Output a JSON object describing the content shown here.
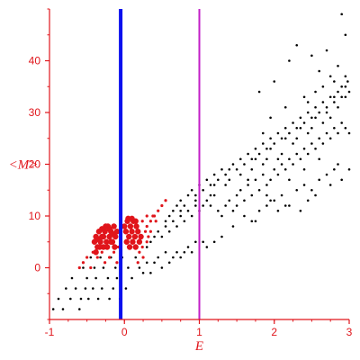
{
  "chart_data": {
    "type": "scatter",
    "xlabel": "E",
    "ylabel": "<M>",
    "xlim": [
      -1,
      3
    ],
    "ylim": [
      -10,
      50
    ],
    "x_ticks": [
      -1,
      0,
      1,
      2,
      3
    ],
    "y_ticks": [
      0,
      10,
      20,
      30,
      40
    ],
    "x_tick_labels": [
      "-1",
      "0",
      "1",
      "2",
      "3"
    ],
    "y_tick_labels": [
      "0",
      "10",
      "20",
      "30",
      "40"
    ],
    "grid": false,
    "legend": "none",
    "vertical_lines": [
      {
        "x": -0.05,
        "color": "#0a10ee"
      },
      {
        "x": 1.0,
        "color": "#c21ec7"
      }
    ],
    "series": [
      {
        "color": "#000000",
        "marker_size": 1.3,
        "points": [
          [
            -0.95,
            -8
          ],
          [
            -0.88,
            -6
          ],
          [
            -0.82,
            -8
          ],
          [
            -0.78,
            -4
          ],
          [
            -0.72,
            -6
          ],
          [
            -0.7,
            -2
          ],
          [
            -0.65,
            -4
          ],
          [
            -0.6,
            -8
          ],
          [
            -0.58,
            -6
          ],
          [
            -0.55,
            0
          ],
          [
            -0.52,
            -4
          ],
          [
            -0.5,
            -2
          ],
          [
            -0.48,
            -6
          ],
          [
            -0.45,
            2
          ],
          [
            -0.42,
            -4
          ],
          [
            -0.4,
            0
          ],
          [
            -0.38,
            -2
          ],
          [
            -0.35,
            -6
          ],
          [
            -0.32,
            2
          ],
          [
            -0.3,
            -4
          ],
          [
            -0.28,
            0
          ],
          [
            -0.25,
            4
          ],
          [
            -0.22,
            -2
          ],
          [
            -0.2,
            -6
          ],
          [
            -0.18,
            2
          ],
          [
            -0.15,
            -4
          ],
          [
            -0.12,
            0
          ],
          [
            -0.1,
            -2
          ],
          [
            -0.08,
            4
          ],
          [
            -0.06,
            -6
          ],
          [
            -0.03,
            2
          ],
          [
            0.02,
            -4
          ],
          [
            0.05,
            0
          ],
          [
            0.1,
            -2
          ],
          [
            0.15,
            2
          ],
          [
            0.2,
            0
          ],
          [
            0.25,
            -1
          ],
          [
            0.3,
            1
          ],
          [
            0.35,
            -1
          ],
          [
            0.4,
            1
          ],
          [
            0.45,
            2
          ],
          [
            0.5,
            0
          ],
          [
            0.55,
            3
          ],
          [
            0.6,
            1
          ],
          [
            0.65,
            2
          ],
          [
            0.7,
            3
          ],
          [
            0.75,
            2
          ],
          [
            0.8,
            3
          ],
          [
            0.85,
            4
          ],
          [
            0.9,
            3
          ],
          [
            0.95,
            5
          ],
          [
            1.05,
            5
          ],
          [
            1.1,
            4
          ],
          [
            1.2,
            5
          ],
          [
            1.3,
            6
          ],
          [
            1.45,
            8
          ],
          [
            1.6,
            10
          ],
          [
            1.7,
            9
          ],
          [
            1.8,
            11
          ],
          [
            1.9,
            12
          ],
          [
            2.0,
            13
          ],
          [
            2.1,
            14
          ],
          [
            2.2,
            12
          ],
          [
            2.3,
            15
          ],
          [
            2.4,
            16
          ],
          [
            2.5,
            15
          ],
          [
            2.6,
            17
          ],
          [
            2.7,
            18
          ],
          [
            2.8,
            19
          ],
          [
            2.9,
            17
          ],
          [
            3.0,
            19
          ],
          [
            2.45,
            13
          ],
          [
            2.35,
            11
          ],
          [
            2.15,
            12
          ],
          [
            1.95,
            13
          ],
          [
            2.85,
            20
          ],
          [
            2.75,
            16
          ],
          [
            2.55,
            14
          ],
          [
            2.05,
            11
          ],
          [
            1.75,
            9
          ],
          [
            0.3,
            4
          ],
          [
            0.35,
            5
          ],
          [
            0.4,
            6
          ],
          [
            0.45,
            7
          ],
          [
            0.5,
            6
          ],
          [
            0.55,
            8
          ],
          [
            0.6,
            7
          ],
          [
            0.65,
            9
          ],
          [
            0.7,
            8
          ],
          [
            0.75,
            10
          ],
          [
            0.8,
            9
          ],
          [
            0.85,
            11
          ],
          [
            0.9,
            10
          ],
          [
            0.95,
            12
          ],
          [
            1.0,
            11
          ],
          [
            1.05,
            12
          ],
          [
            1.1,
            13
          ],
          [
            1.15,
            12
          ],
          [
            1.2,
            14
          ],
          [
            1.25,
            11
          ],
          [
            1.3,
            10
          ],
          [
            1.35,
            12
          ],
          [
            1.4,
            13
          ],
          [
            1.45,
            11
          ],
          [
            1.5,
            14
          ],
          [
            1.55,
            15
          ],
          [
            1.6,
            13
          ],
          [
            1.65,
            16
          ],
          [
            1.7,
            14
          ],
          [
            1.75,
            17
          ],
          [
            1.8,
            15
          ],
          [
            1.85,
            18
          ],
          [
            1.9,
            16
          ],
          [
            1.95,
            17
          ],
          [
            2.0,
            19
          ],
          [
            2.05,
            18
          ],
          [
            2.1,
            20
          ],
          [
            2.15,
            19
          ],
          [
            2.2,
            21
          ],
          [
            2.25,
            20
          ],
          [
            2.3,
            22
          ],
          [
            2.35,
            21
          ],
          [
            2.4,
            23
          ],
          [
            2.45,
            22
          ],
          [
            2.5,
            24
          ],
          [
            2.55,
            23
          ],
          [
            2.6,
            25
          ],
          [
            2.65,
            24
          ],
          [
            2.7,
            26
          ],
          [
            2.75,
            25
          ],
          [
            2.8,
            27
          ],
          [
            2.85,
            26
          ],
          [
            2.9,
            28
          ],
          [
            2.95,
            27
          ],
          [
            3.0,
            26
          ],
          [
            2.6,
            21
          ],
          [
            2.4,
            19
          ],
          [
            2.2,
            17
          ],
          [
            1.9,
            14
          ],
          [
            1.5,
            12
          ],
          [
            0.6,
            10
          ],
          [
            0.65,
            11
          ],
          [
            0.7,
            12
          ],
          [
            0.75,
            13
          ],
          [
            0.8,
            12
          ],
          [
            0.85,
            14
          ],
          [
            0.9,
            15
          ],
          [
            0.95,
            14
          ],
          [
            1.0,
            16
          ],
          [
            1.05,
            15
          ],
          [
            1.1,
            17
          ],
          [
            1.15,
            16
          ],
          [
            1.2,
            18
          ],
          [
            1.25,
            17
          ],
          [
            1.3,
            19
          ],
          [
            1.35,
            18
          ],
          [
            1.4,
            19
          ],
          [
            1.45,
            20
          ],
          [
            1.5,
            19
          ],
          [
            1.55,
            21
          ],
          [
            1.6,
            20
          ],
          [
            1.65,
            22
          ],
          [
            1.7,
            21
          ],
          [
            1.75,
            23
          ],
          [
            1.8,
            22
          ],
          [
            1.85,
            24
          ],
          [
            1.9,
            23
          ],
          [
            1.95,
            25
          ],
          [
            2.0,
            24
          ],
          [
            2.05,
            26
          ],
          [
            2.1,
            25
          ],
          [
            2.15,
            27
          ],
          [
            2.2,
            26
          ],
          [
            2.25,
            28
          ],
          [
            2.3,
            27
          ],
          [
            2.35,
            29
          ],
          [
            2.4,
            28
          ],
          [
            2.45,
            30
          ],
          [
            2.5,
            29
          ],
          [
            2.55,
            31
          ],
          [
            2.6,
            30
          ],
          [
            2.65,
            32
          ],
          [
            2.7,
            31
          ],
          [
            2.75,
            33
          ],
          [
            2.8,
            32
          ],
          [
            2.85,
            34
          ],
          [
            2.9,
            33
          ],
          [
            2.95,
            35
          ],
          [
            3.0,
            34
          ],
          [
            2.98,
            36
          ],
          [
            2.9,
            35
          ],
          [
            2.8,
            33
          ],
          [
            2.7,
            30
          ],
          [
            2.5,
            27
          ],
          [
            2.3,
            25
          ],
          [
            2.1,
            22
          ],
          [
            1.9,
            21
          ],
          [
            1.7,
            19
          ],
          [
            1.4,
            17
          ],
          [
            1.2,
            16
          ],
          [
            2.25,
            24
          ],
          [
            2.45,
            26
          ],
          [
            2.65,
            28
          ],
          [
            2.85,
            31
          ],
          [
            2.95,
            33
          ],
          [
            2.55,
            29
          ],
          [
            2.35,
            27
          ],
          [
            2.15,
            25
          ],
          [
            1.95,
            23
          ],
          [
            1.75,
            21
          ],
          [
            1.55,
            18
          ],
          [
            1.35,
            16
          ],
          [
            1.15,
            14
          ],
          [
            0.95,
            13
          ],
          [
            0.75,
            11
          ],
          [
            0.55,
            9
          ],
          [
            2.05,
            21
          ],
          [
            2.75,
            29
          ],
          [
            1.85,
            20
          ],
          [
            1.65,
            17
          ],
          [
            2.3,
            43
          ],
          [
            2.5,
            41
          ],
          [
            2.6,
            38
          ],
          [
            2.7,
            42
          ],
          [
            2.85,
            39
          ],
          [
            2.95,
            45
          ],
          [
            2.9,
            49
          ],
          [
            2.95,
            37
          ],
          [
            2.2,
            40
          ],
          [
            2.0,
            36
          ],
          [
            1.8,
            34
          ],
          [
            2.4,
            33
          ],
          [
            2.65,
            35
          ],
          [
            2.8,
            36
          ],
          [
            2.55,
            34
          ],
          [
            2.15,
            31
          ],
          [
            1.95,
            29
          ],
          [
            2.75,
            37
          ],
          [
            2.45,
            32
          ],
          [
            1.85,
            26
          ]
        ]
      },
      {
        "color": "#e0151b",
        "marker_size": 3.2,
        "points": [
          [
            -0.4,
            5
          ],
          [
            -0.38,
            6
          ],
          [
            -0.36,
            4
          ],
          [
            -0.34,
            7
          ],
          [
            -0.32,
            5
          ],
          [
            -0.3,
            6
          ],
          [
            -0.28,
            4
          ],
          [
            -0.26,
            7
          ],
          [
            -0.24,
            5
          ],
          [
            -0.22,
            8
          ],
          [
            -0.2,
            6
          ],
          [
            -0.18,
            7
          ],
          [
            -0.16,
            5
          ],
          [
            -0.14,
            8
          ],
          [
            -0.12,
            6
          ],
          [
            -0.1,
            7
          ],
          [
            -0.38,
            3
          ],
          [
            -0.33,
            4
          ],
          [
            -0.28,
            6
          ],
          [
            -0.23,
            4
          ],
          [
            -0.18,
            5
          ],
          [
            -0.13,
            4
          ],
          [
            -0.3,
            7.5
          ],
          [
            -0.25,
            8
          ],
          [
            -0.2,
            7.5
          ],
          [
            -0.15,
            6.5
          ],
          [
            -0.35,
            5.5
          ],
          [
            0.0,
            8
          ],
          [
            0.02,
            7
          ],
          [
            0.04,
            9
          ],
          [
            0.06,
            6
          ],
          [
            0.08,
            8
          ],
          [
            0.1,
            7
          ],
          [
            0.12,
            9
          ],
          [
            0.14,
            6
          ],
          [
            0.16,
            8
          ],
          [
            0.18,
            7
          ],
          [
            0.2,
            5
          ],
          [
            0.22,
            6
          ],
          [
            0.03,
            5
          ],
          [
            0.07,
            4
          ],
          [
            0.11,
            5
          ],
          [
            0.15,
            4
          ],
          [
            0.05,
            9.5
          ],
          [
            0.1,
            9.5
          ],
          [
            0.15,
            9
          ]
        ]
      },
      {
        "color": "#e0151b",
        "marker_size": 1.6,
        "points": [
          [
            -0.6,
            0
          ],
          [
            -0.55,
            1
          ],
          [
            -0.5,
            2
          ],
          [
            -0.45,
            0
          ],
          [
            -0.42,
            3
          ],
          [
            -0.36,
            2
          ],
          [
            -0.3,
            3
          ],
          [
            -0.26,
            1
          ],
          [
            -0.2,
            2
          ],
          [
            -0.14,
            3
          ],
          [
            -0.1,
            1
          ],
          [
            -0.08,
            4
          ],
          [
            0.24,
            4
          ],
          [
            0.28,
            7
          ],
          [
            0.3,
            8
          ],
          [
            0.32,
            6
          ],
          [
            0.35,
            9
          ],
          [
            0.38,
            10
          ],
          [
            0.42,
            9
          ],
          [
            0.45,
            11
          ],
          [
            0.5,
            12
          ],
          [
            0.55,
            13
          ],
          [
            0.24,
            9
          ],
          [
            0.3,
            10
          ],
          [
            0.35,
            7
          ],
          [
            0.4,
            10
          ],
          [
            0.2,
            3
          ],
          [
            0.25,
            2
          ],
          [
            0.3,
            5
          ],
          [
            0.18,
            1
          ]
        ]
      }
    ]
  }
}
